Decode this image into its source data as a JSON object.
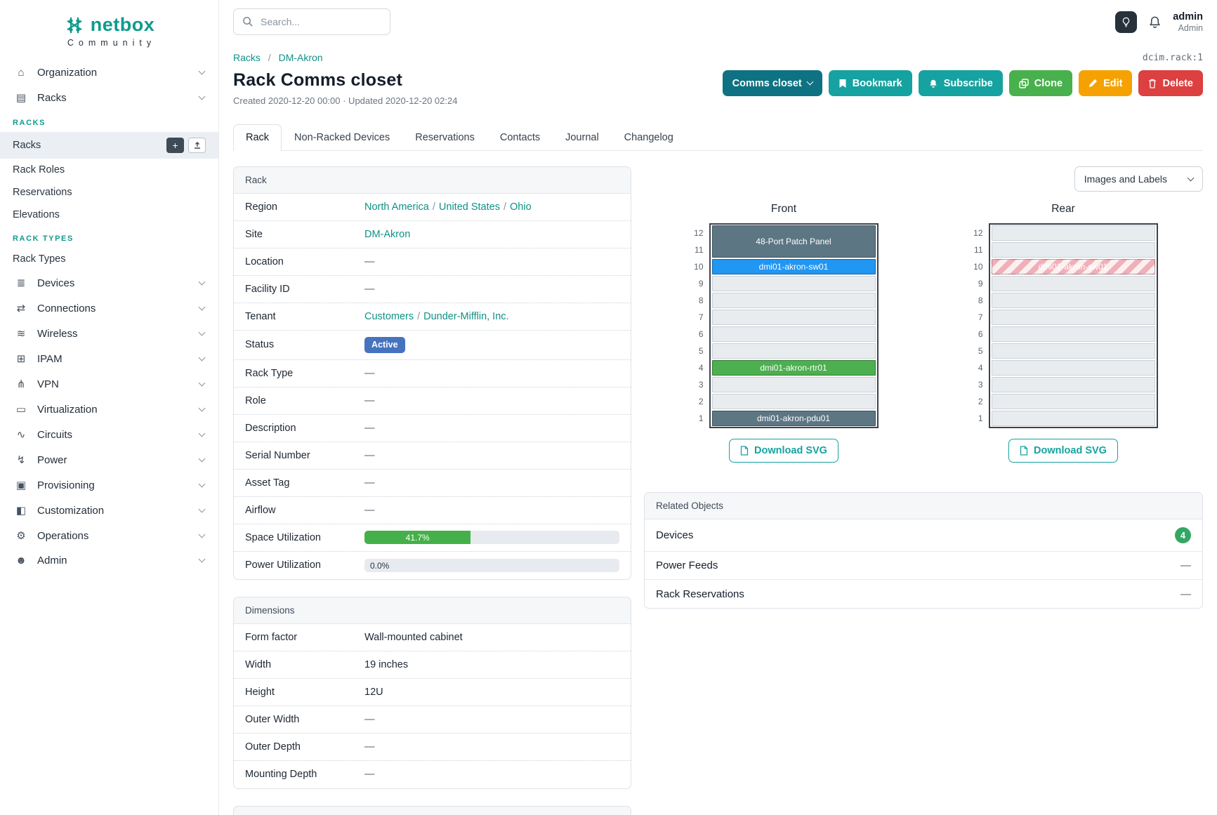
{
  "colors": {
    "teal": "#0f9b8e",
    "link": "#0e9285",
    "btn-dark-teal": "#0f7282",
    "btn-teal": "#16a2a0",
    "btn-green": "#48b14d",
    "btn-orange": "#f5a200",
    "btn-red": "#dc4040",
    "badge-blue": "#4673c0",
    "progress-green": "#45b049",
    "dev-slate": "#5c7684",
    "dev-blue": "#2196f3",
    "dev-green": "#4caf50",
    "count-badge": "#35a764"
  },
  "icons": {
    "organization": "⌂",
    "racks": "▤",
    "devices": "≣",
    "connections": "⇄",
    "wireless": "≋",
    "ipam": "⊞",
    "vpn": "⋔",
    "virtualization": "▭",
    "circuits": "∿",
    "power": "↯",
    "provisioning": "▣",
    "customization": "◧",
    "operations": "⚙",
    "admin": "☻",
    "plus": "+"
  },
  "sidebar": {
    "logo_text": "netbox",
    "logo_subtext": "Community",
    "top_groups": [
      {
        "label": "Organization"
      },
      {
        "label": "Racks"
      }
    ],
    "sections": [
      {
        "heading": "RACKS",
        "items": [
          {
            "label": "Racks",
            "active": true
          },
          {
            "label": "Rack Roles"
          },
          {
            "label": "Reservations"
          },
          {
            "label": "Elevations"
          }
        ]
      },
      {
        "heading": "RACK TYPES",
        "items": [
          {
            "label": "Rack Types"
          }
        ]
      }
    ],
    "groups": [
      {
        "label": "Devices"
      },
      {
        "label": "Connections"
      },
      {
        "label": "Wireless"
      },
      {
        "label": "IPAM"
      },
      {
        "label": "VPN"
      },
      {
        "label": "Virtualization"
      },
      {
        "label": "Circuits"
      },
      {
        "label": "Power"
      },
      {
        "label": "Provisioning"
      },
      {
        "label": "Customization"
      },
      {
        "label": "Operations"
      },
      {
        "label": "Admin"
      }
    ]
  },
  "topbar": {
    "search_placeholder": "Search...",
    "username": "admin",
    "role": "Admin"
  },
  "page": {
    "object_id": "dcim.rack:1",
    "breadcrumb": [
      "Racks",
      "DM-Akron"
    ],
    "separator": "/",
    "title": "Rack Comms closet",
    "subtitle": "Created 2020-12-20 00:00 · Updated 2020-12-20 02:24",
    "actions": {
      "name_dropdown": "Comms closet",
      "bookmark": "Bookmark",
      "subscribe": "Subscribe",
      "clone": "Clone",
      "edit": "Edit",
      "delete": "Delete"
    },
    "tabs": [
      "Rack",
      "Non-Racked Devices",
      "Reservations",
      "Contacts",
      "Journal",
      "Changelog"
    ],
    "active_tab": "Rack"
  },
  "rack_panel": {
    "title": "Rack",
    "rows": [
      {
        "label": "Region",
        "links": [
          "North America",
          "United States",
          "Ohio"
        ]
      },
      {
        "label": "Site",
        "links": [
          "DM-Akron"
        ]
      },
      {
        "label": "Location",
        "value": "—"
      },
      {
        "label": "Facility ID",
        "value": "—"
      },
      {
        "label": "Tenant",
        "links": [
          "Customers",
          "Dunder-Mifflin, Inc."
        ]
      },
      {
        "label": "Status",
        "badge": "Active"
      },
      {
        "label": "Rack Type",
        "value": "—"
      },
      {
        "label": "Role",
        "value": "—"
      },
      {
        "label": "Description",
        "value": "—"
      },
      {
        "label": "Serial Number",
        "value": "—"
      },
      {
        "label": "Asset Tag",
        "value": "—"
      },
      {
        "label": "Airflow",
        "value": "—"
      },
      {
        "label": "Space Utilization",
        "percent": 41.7,
        "display": "41.7%"
      },
      {
        "label": "Power Utilization",
        "percent": 0,
        "display": "0.0%"
      }
    ]
  },
  "dimensions_panel": {
    "title": "Dimensions",
    "rows": [
      {
        "label": "Form factor",
        "value": "Wall-mounted cabinet"
      },
      {
        "label": "Width",
        "value": "19 inches"
      },
      {
        "label": "Height",
        "value": "12U"
      },
      {
        "label": "Outer Width",
        "value": "—"
      },
      {
        "label": "Outer Depth",
        "value": "—"
      },
      {
        "label": "Mounting Depth",
        "value": "—"
      }
    ]
  },
  "elevations": {
    "view_select": "Images and Labels",
    "front": {
      "title": "Front",
      "download_label": "Download SVG",
      "unit_count": 12,
      "units": [
        {
          "u": 12,
          "label": "48-Port Patch Panel",
          "span": 2,
          "style": "slate"
        },
        {
          "u": 10,
          "label": "dmi01-akron-sw01",
          "span": 1,
          "style": "blue"
        },
        {
          "u": 4,
          "label": "dmi01-akron-rtr01",
          "span": 1,
          "style": "green"
        },
        {
          "u": 1,
          "label": "dmi01-akron-pdu01",
          "span": 1,
          "style": "slate"
        }
      ]
    },
    "rear": {
      "title": "Rear",
      "download_label": "Download SVG",
      "unit_count": 12,
      "units": [
        {
          "u": 10,
          "label": "dmi01-akron-sw01",
          "span": 1,
          "style": "striped"
        }
      ]
    }
  },
  "related_objects": {
    "title": "Related Objects",
    "rows": [
      {
        "label": "Devices",
        "count": "4"
      },
      {
        "label": "Power Feeds",
        "value": "—"
      },
      {
        "label": "Rack Reservations",
        "value": "—"
      }
    ]
  }
}
